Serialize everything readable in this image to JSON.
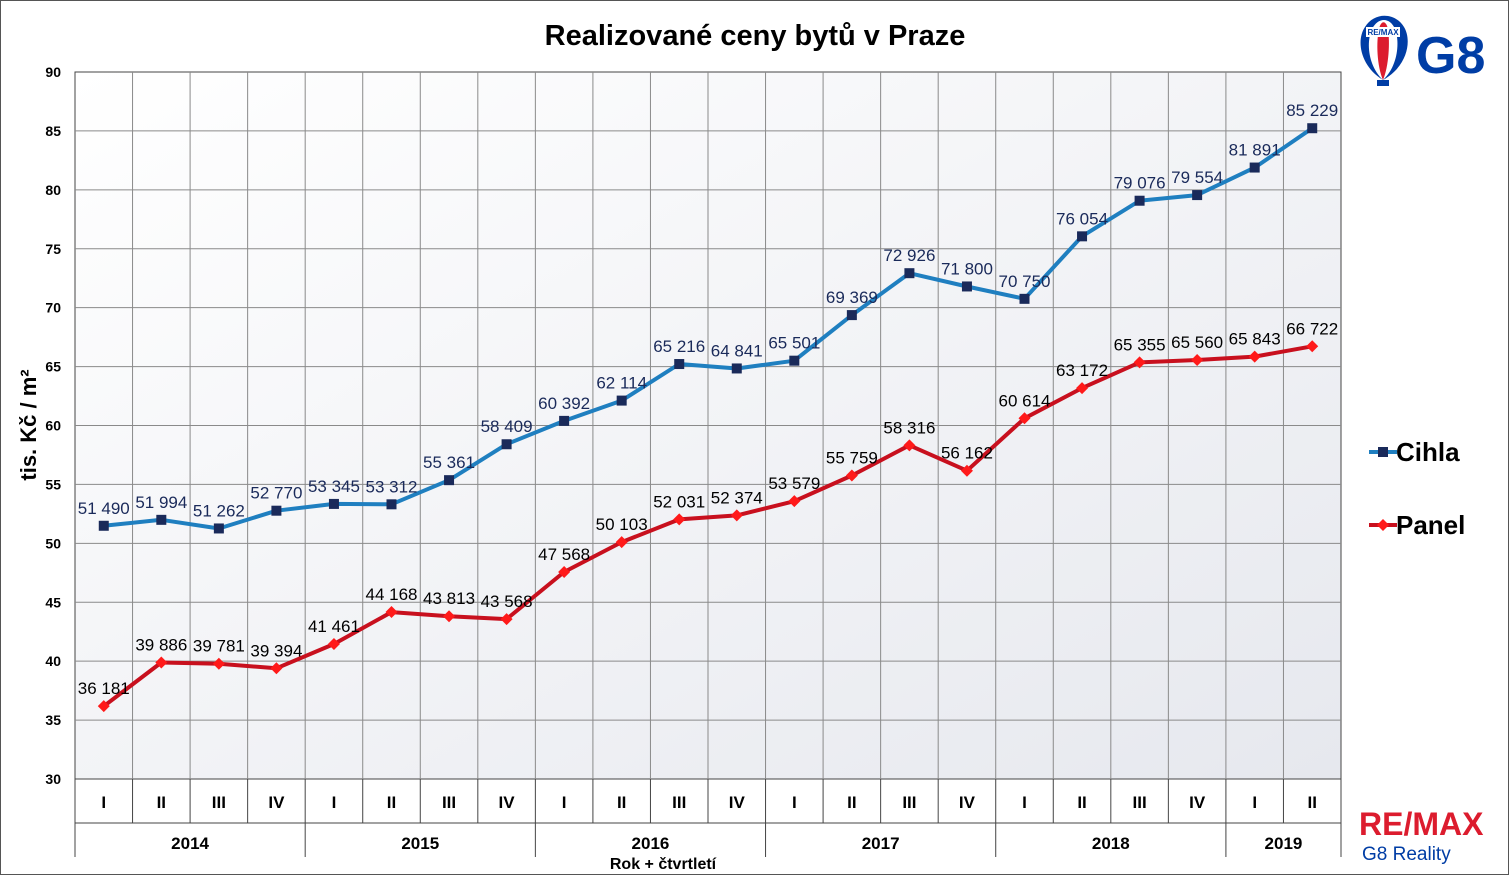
{
  "chart_data": {
    "type": "line",
    "title": "Realizované ceny bytů v Praze",
    "ylabel": "tis. Kč / m²",
    "xlabel": "Rok + čtvrtletí",
    "ylim": [
      30,
      90
    ],
    "yticks": [
      "30",
      "35",
      "40",
      "45",
      "50",
      "55",
      "60",
      "65",
      "70",
      "75",
      "80",
      "85",
      "90"
    ],
    "grid": true,
    "legend_position": "right",
    "categories": [
      "I",
      "II",
      "III",
      "IV",
      "I",
      "II",
      "III",
      "IV",
      "I",
      "II",
      "III",
      "IV",
      "I",
      "II",
      "III",
      "IV",
      "I",
      "II",
      "III",
      "IV",
      "I",
      "II"
    ],
    "years": [
      {
        "label": "2014",
        "quarters": 4
      },
      {
        "label": "2015",
        "quarters": 4
      },
      {
        "label": "2016",
        "quarters": 4
      },
      {
        "label": "2017",
        "quarters": 4
      },
      {
        "label": "2018",
        "quarters": 4
      },
      {
        "label": "2019",
        "quarters": 2
      }
    ],
    "series": [
      {
        "name": "Cihla",
        "color": "#1f7fc0",
        "marker": "square",
        "marker_color": "#1a2a5a",
        "label_color": "#1a2a5a",
        "values": [
          51.49,
          51.994,
          51.262,
          52.77,
          53.345,
          53.312,
          55.361,
          58.409,
          60.392,
          62.114,
          65.216,
          64.841,
          65.501,
          69.369,
          72.926,
          71.8,
          70.75,
          76.054,
          79.076,
          79.554,
          81.891,
          85.229
        ],
        "labels": [
          "51 490",
          "51 994",
          "51 262",
          "52 770",
          "53 345",
          "53 312",
          "55 361",
          "58 409",
          "60 392",
          "62 114",
          "65 216",
          "64 841",
          "65 501",
          "69 369",
          "72 926",
          "71 800",
          "70 750",
          "76 054",
          "79 076",
          "79 554",
          "81 891",
          "85 229"
        ]
      },
      {
        "name": "Panel",
        "color": "#c8101e",
        "marker": "diamond",
        "marker_color": "#ff1a1a",
        "label_color": "#000000",
        "values": [
          36.181,
          39.886,
          39.781,
          39.394,
          41.461,
          44.168,
          43.813,
          43.568,
          47.568,
          50.103,
          52.031,
          52.374,
          53.579,
          55.759,
          58.316,
          56.162,
          60.614,
          63.172,
          65.355,
          65.56,
          65.843,
          66.722
        ],
        "labels": [
          "36 181",
          "39 886",
          "39 781",
          "39 394",
          "41 461",
          "44 168",
          "43 813",
          "43 568",
          "47 568",
          "50 103",
          "52 031",
          "52 374",
          "53 579",
          "55 759",
          "58 316",
          "56 162",
          "60 614",
          "63 172",
          "65 355",
          "65 560",
          "65 843",
          "66 722"
        ]
      }
    ]
  },
  "branding": {
    "balloon_text": "RE/MAX",
    "logo_top": "G8",
    "remax_bottom": "RE/MAX",
    "remax_sub": "G8 Reality",
    "colors": {
      "blue": "#003da5",
      "red": "#dc1c2e"
    }
  }
}
